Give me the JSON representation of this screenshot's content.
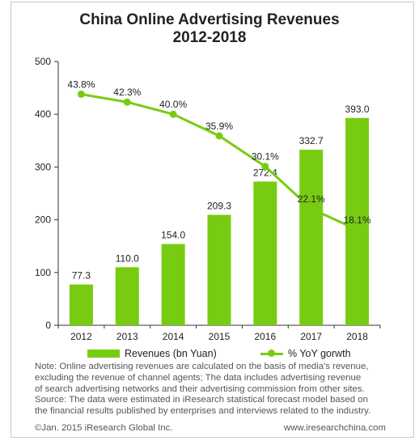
{
  "title_line1": "China Online Advertising Revenues",
  "title_line2": "2012-2018",
  "chart_data": {
    "type": "bar",
    "categories": [
      "2012",
      "2013",
      "2014",
      "2015",
      "2016",
      "2017",
      "2018"
    ],
    "series": [
      {
        "name": "Revenues  (bn Yuan)",
        "type": "bar",
        "values": [
          77.3,
          110.0,
          154.0,
          209.3,
          272.4,
          332.7,
          393.0
        ],
        "labels": [
          "77.3",
          "110.0",
          "154.0",
          "209.3",
          "272.4",
          "332.7",
          "393.0"
        ]
      },
      {
        "name": "% YoY gorwth",
        "type": "line",
        "values": [
          43.8,
          42.3,
          40.0,
          35.9,
          30.1,
          22.1,
          18.1
        ],
        "labels": [
          "43.8%",
          "42.3%",
          "40.0%",
          "35.9%",
          "30.1%",
          "22.1%",
          "18.1%"
        ]
      }
    ],
    "y_ticks": [
      "0",
      "100",
      "200",
      "300",
      "400",
      "500"
    ],
    "ylim": [
      0,
      500
    ],
    "grid": false,
    "legend_position": "bottom",
    "colors": {
      "bar": "#77cc11",
      "line": "#77cc11",
      "axis": "#333333"
    }
  },
  "note": {
    "lines": [
      "Note: Online  advertising revenues are calculated on the basis of media's revenue,",
      "excluding the revenue of channel agents; The data includes advertising revenue",
      "of search advertising networks and their advertising commission from other sites.",
      "Source: The data  were estimated in iResearch statistical forecast model based on",
      "the financial results published by enterprises and interviews related to the industry."
    ]
  },
  "footer": {
    "copyright": "©Jan. 2015 iResearch Global Inc.",
    "website": "www.iresearchchina.com"
  }
}
